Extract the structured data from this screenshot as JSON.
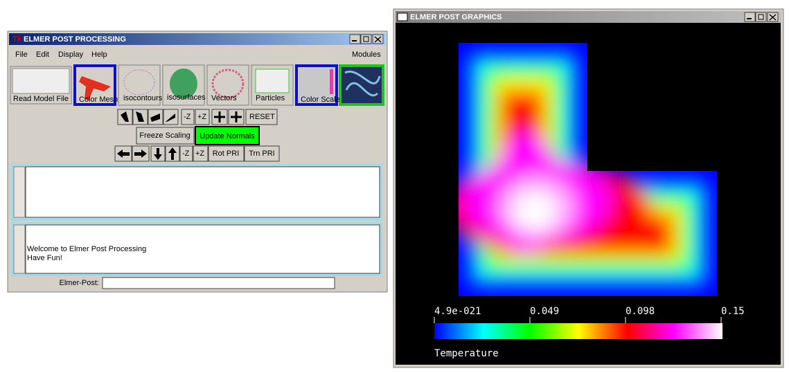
{
  "left_window": {
    "title": "ELMER POST PROCESSING",
    "menu": [
      "File",
      "Edit",
      "Display",
      "Help"
    ],
    "modules": "Modules",
    "tools": [
      "Read Model File",
      "Color Mesh",
      "isocontours",
      "isosurfaces",
      "Vectors",
      "Particles",
      "Color Scale"
    ],
    "rotate_buttons": [
      "-Z",
      "+Z",
      "RESET"
    ],
    "freeze": "Freeze Scaling",
    "update": "Update Normals",
    "translate_buttons": [
      "-Z",
      "+Z",
      "Rot PRI",
      "Trn PRI"
    ],
    "console": [
      "Welcome to Elmer Post Processing",
      "Have Fun!"
    ],
    "prompt": "Elmer-Post:"
  },
  "right_window": {
    "title": "ELMER POST GRAPHICS",
    "scale_labels": [
      "4.9e-021",
      "0.049",
      "0.098",
      "0.15"
    ],
    "scale_title": "Temperature"
  }
}
